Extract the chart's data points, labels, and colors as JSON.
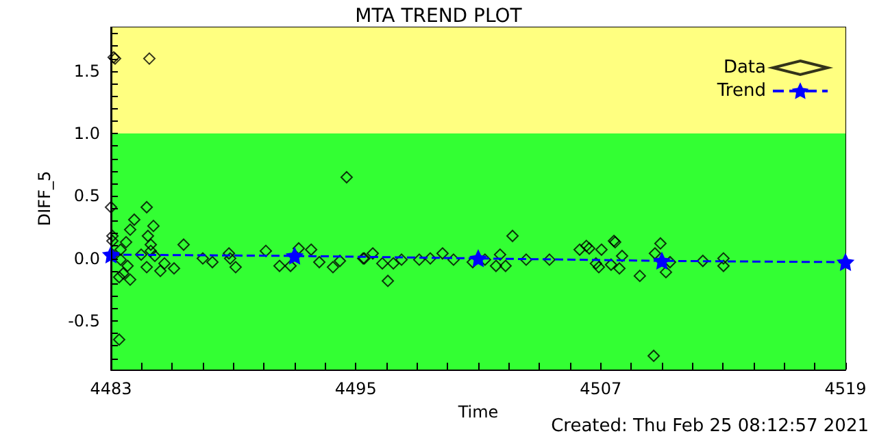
{
  "chart_data": {
    "type": "scatter",
    "title": "MTA TREND PLOT",
    "xlabel": "Time",
    "ylabel": "DIFF_5",
    "annotations": [
      "Created: Thu Feb 25 08:12:57 2021"
    ],
    "xlim": [
      4483,
      4519
    ],
    "xticks": [
      4483,
      {
        "value": 4484.5,
        "label": null
      },
      {
        "value": 4486,
        "label": null
      },
      {
        "value": 4487.5,
        "label": null
      },
      {
        "value": 4489,
        "label": null
      },
      {
        "value": 4490.5,
        "label": null
      },
      {
        "value": 4492,
        "label": null
      },
      {
        "value": 4493.5,
        "label": null
      },
      4495,
      {
        "value": 4496.5,
        "label": null
      },
      {
        "value": 4498,
        "label": null
      },
      {
        "value": 4499.5,
        "label": null
      },
      {
        "value": 4501,
        "label": null
      },
      {
        "value": 4502.5,
        "label": null
      },
      {
        "value": 4504,
        "label": null
      },
      {
        "value": 4505.5,
        "label": null
      },
      4507,
      {
        "value": 4508.5,
        "label": null
      },
      {
        "value": 4510,
        "label": null
      },
      {
        "value": 4511.5,
        "label": null
      },
      {
        "value": 4513,
        "label": null
      },
      {
        "value": 4514.5,
        "label": null
      },
      {
        "value": 4516,
        "label": null
      },
      {
        "value": 4517.5,
        "label": null
      },
      4519
    ],
    "ylim": [
      -0.89,
      1.85
    ],
    "yticks": [
      {
        "value": -0.8,
        "label": null
      },
      {
        "value": -0.7,
        "label": null
      },
      {
        "value": -0.6,
        "label": null
      },
      {
        "value": -0.5,
        "label": "-0.5"
      },
      {
        "value": -0.4,
        "label": null
      },
      {
        "value": -0.3,
        "label": null
      },
      {
        "value": -0.2,
        "label": null
      },
      {
        "value": -0.1,
        "label": null
      },
      {
        "value": 0,
        "label": "0.0"
      },
      {
        "value": 0.1,
        "label": null
      },
      {
        "value": 0.2,
        "label": null
      },
      {
        "value": 0.3,
        "label": null
      },
      {
        "value": 0.4,
        "label": null
      },
      {
        "value": 0.5,
        "label": "0.5"
      },
      {
        "value": 0.6,
        "label": null
      },
      {
        "value": 0.7,
        "label": null
      },
      {
        "value": 0.8,
        "label": null
      },
      {
        "value": 0.9,
        "label": null
      },
      {
        "value": 1,
        "label": "1.0"
      },
      {
        "value": 1.1,
        "label": null
      },
      {
        "value": 1.2,
        "label": null
      },
      {
        "value": 1.3,
        "label": null
      },
      {
        "value": 1.4,
        "label": null
      },
      {
        "value": 1.5,
        "label": "1.5"
      },
      {
        "value": 1.6,
        "label": null
      },
      {
        "value": 1.7,
        "label": null
      },
      {
        "value": 1.8,
        "label": null
      }
    ],
    "bands": [
      {
        "axis": "y",
        "from": 1.0,
        "to": 1.85,
        "color": "#ffff80"
      },
      {
        "axis": "y",
        "from": -0.89,
        "to": 1.0,
        "color": "#33ff33"
      }
    ],
    "grid": false,
    "legend": "top right",
    "series": [
      {
        "name": "Data",
        "marker": "diamond",
        "color": "#000000",
        "x": [
          4483.13,
          4483.2,
          4484.88,
          4494.55,
          4483.0,
          4484.75,
          4484.14,
          4485.08,
          4483.94,
          4484.81,
          4483.07,
          4483.74,
          4486.56,
          4484.95,
          4483.47,
          4484.95,
          4485.15,
          4487.5,
          4487.97,
          4488.78,
          4488.84,
          4489.11,
          4490.59,
          4491.26,
          4491.8,
          4492.2,
          4492.81,
          4493.21,
          4493.88,
          4494.22,
          4495.36,
          4495.83,
          4483.4,
          4483.47,
          4483.81,
          4483.6,
          4483.94,
          4483.4,
          4484.75,
          4485.42,
          4485.62,
          4486.09,
          4484.48,
          4483.07,
          4483.07,
          4502.68,
          4496.57,
          4495.42,
          4496.3,
          4496.84,
          4497.24,
          4498.11,
          4498.65,
          4499.25,
          4499.79,
          4500.73,
          4501.33,
          4501.87,
          4502.07,
          4502.34,
          4503.35,
          4504.49,
          4505.97,
          4506.3,
          4507.04,
          4506.77,
          4507.65,
          4506.44,
          4507.71,
          4506.91,
          4507.92,
          4508.05,
          4508.92,
          4509.93,
          4509.66,
          4509.6,
          4510.2,
          4510.4,
          4512.01,
          4513.02,
          4513.02,
          4507.51
        ],
        "values": [
          1.61,
          1.6,
          1.6,
          0.65,
          0.41,
          0.41,
          0.31,
          0.26,
          0.23,
          0.18,
          0.18,
          0.13,
          0.11,
          0.11,
          0.07,
          0.06,
          0.02,
          0,
          -0.03,
          0.04,
          0,
          -0.07,
          0.06,
          -0.06,
          -0.06,
          0.08,
          0.07,
          -0.03,
          -0.07,
          -0.02,
          0,
          0.04,
          -0.65,
          -0.01,
          -0.06,
          -0.12,
          -0.17,
          -0.15,
          -0.07,
          -0.1,
          -0.04,
          -0.08,
          0.03,
          0.03,
          0.14,
          0.18,
          -0.18,
          0,
          -0.04,
          -0.04,
          -0.01,
          -0.01,
          0,
          0.04,
          -0.01,
          -0.03,
          -0.01,
          -0.06,
          0.03,
          -0.06,
          -0.01,
          -0.01,
          0.07,
          0.1,
          0.07,
          -0.04,
          0.14,
          0.08,
          0.13,
          -0.07,
          -0.08,
          0.02,
          -0.14,
          0.12,
          0.04,
          -0.78,
          -0.11,
          -0.03,
          -0.02,
          0,
          -0.06,
          -0.05
        ]
      },
      {
        "name": "Trend",
        "type": "line",
        "marker": "star",
        "line_style": "dashed",
        "color": "#0000ff",
        "x": [
          4483,
          4492,
          4501,
          4510,
          4519
        ],
        "values": [
          0.03,
          0.02,
          0,
          -0.02,
          -0.03
        ]
      }
    ]
  }
}
